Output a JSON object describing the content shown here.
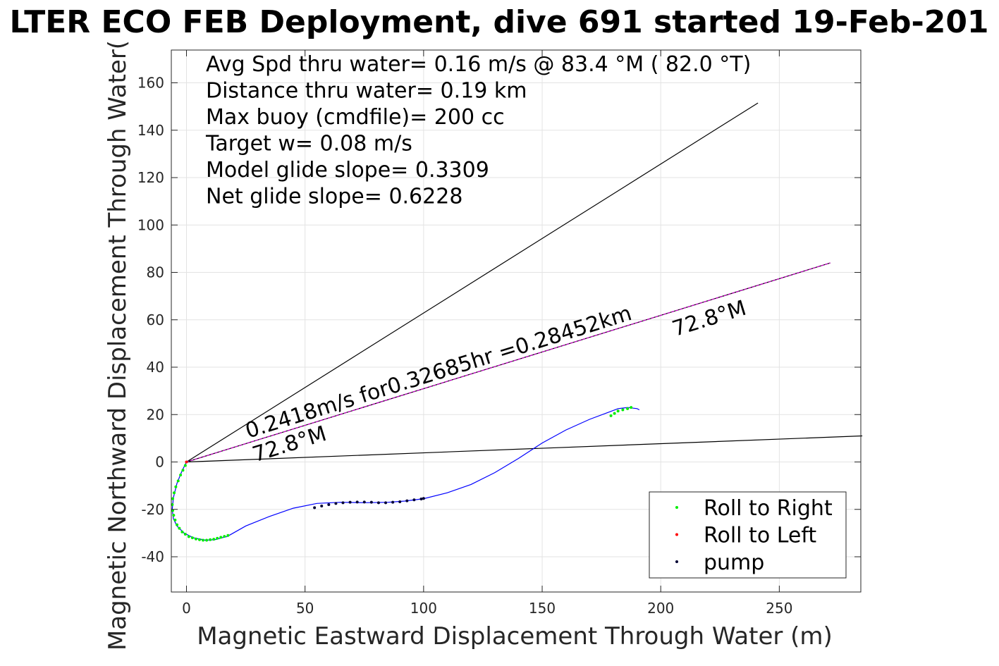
{
  "chart_data": {
    "type": "line",
    "title": "LTER ECO FEB Deployment, dive 691 started 19-Feb-201",
    "xlabel": "Magnetic Eastward Displacement Through Water (m)",
    "ylabel": "Magnetic Northward Displacement Through Water(",
    "xlim": [
      -6,
      285
    ],
    "ylim": [
      -55,
      175
    ],
    "xticks": [
      0,
      50,
      100,
      150,
      200,
      250
    ],
    "yticks": [
      -40,
      -20,
      0,
      20,
      40,
      60,
      80,
      100,
      120,
      140,
      160
    ],
    "grid": true,
    "legend_position": "bottom-right",
    "info_lines": [
      "Avg Spd thru water=  0.16 m/s @  83.4 °M ( 82.0 °T)",
      "Distance thru water=  0.19 km",
      "Max buoy (cmdfile)= 200 cc",
      "Target w= 0.08 m/s",
      "Model glide slope= 0.3309",
      "Net glide slope= 0.6228"
    ],
    "annotations": [
      {
        "text": "0.2418m/s for0.32685hr =0.28452km",
        "x": 26,
        "y": 10,
        "angle": 17.2
      },
      {
        "text": "72.8°M",
        "x": 29,
        "y": 0,
        "angle": 17.2
      },
      {
        "text": "72.8°M",
        "x": 206,
        "y": 53,
        "angle": 17.2
      }
    ],
    "reference_lines": [
      {
        "color": "#000000",
        "x": [
          0,
          241
        ],
        "y": [
          0,
          151.5
        ]
      },
      {
        "color": "#000000",
        "x": [
          0,
          285
        ],
        "y": [
          0,
          11
        ]
      },
      {
        "color": "#000000",
        "x": [
          0,
          271.5
        ],
        "y": [
          0,
          84
        ]
      },
      {
        "color": "#cc00cc",
        "x": [
          0,
          271.5
        ],
        "y": [
          0,
          84
        ],
        "dashed": true
      }
    ],
    "track": {
      "color": "#0000ff",
      "x": [
        0,
        -2,
        -4,
        -5.5,
        -6,
        -5.5,
        -4,
        -1,
        3,
        8,
        12,
        15,
        17,
        18,
        25,
        35,
        45,
        55,
        65,
        75,
        85,
        92,
        100,
        110,
        120,
        130,
        140,
        150,
        160,
        170,
        178,
        182,
        186,
        190,
        191
      ],
      "y": [
        0,
        -4,
        -9,
        -15,
        -20,
        -24,
        -27,
        -30,
        -32,
        -33,
        -32.8,
        -32,
        -31.5,
        -31,
        -27,
        -23,
        -19.5,
        -17.5,
        -17,
        -17.2,
        -17,
        -16.5,
        -15.5,
        -13,
        -9.5,
        -4.5,
        1.5,
        8,
        13.5,
        18,
        21,
        22.5,
        23,
        22.5,
        22
      ]
    },
    "series": [
      {
        "name": "Roll to Right",
        "color": "#00ee00",
        "x": [
          -0.5,
          -1.5,
          -2.5,
          -3.5,
          -4.5,
          -5.2,
          -5.8,
          -6,
          -5.8,
          -5.4,
          -4.8,
          -4,
          -3,
          -1.8,
          -0.5,
          1,
          2.5,
          4,
          5.5,
          7,
          8.5,
          10,
          11.5,
          13,
          14.5,
          16,
          17.5,
          179,
          180.5,
          182,
          184,
          186,
          187.5
        ],
        "y": [
          -1.5,
          -3.5,
          -5.5,
          -8,
          -10.5,
          -13,
          -15.5,
          -18,
          -20.5,
          -22.5,
          -24.5,
          -26.5,
          -28,
          -29.5,
          -30.5,
          -31.5,
          -32,
          -32.5,
          -32.8,
          -33,
          -33,
          -32.8,
          -32.6,
          -32.2,
          -31.8,
          -31.4,
          -31,
          19.5,
          20.5,
          21.5,
          22,
          22.5,
          23
        ]
      },
      {
        "name": "Roll to Left",
        "color": "#ff0000",
        "x": [
          0
        ],
        "y": [
          0
        ]
      },
      {
        "name": "pump",
        "color": "#000033",
        "x": [
          54,
          57,
          60,
          63,
          66,
          69,
          72,
          75,
          78,
          81,
          84,
          87,
          90,
          93,
          96,
          99,
          100
        ],
        "y": [
          -19.3,
          -18.6,
          -18,
          -17.5,
          -17.2,
          -17,
          -16.9,
          -16.9,
          -17,
          -17.2,
          -17.2,
          -17,
          -16.8,
          -16.4,
          -16,
          -15.6,
          -15.4
        ]
      }
    ]
  }
}
